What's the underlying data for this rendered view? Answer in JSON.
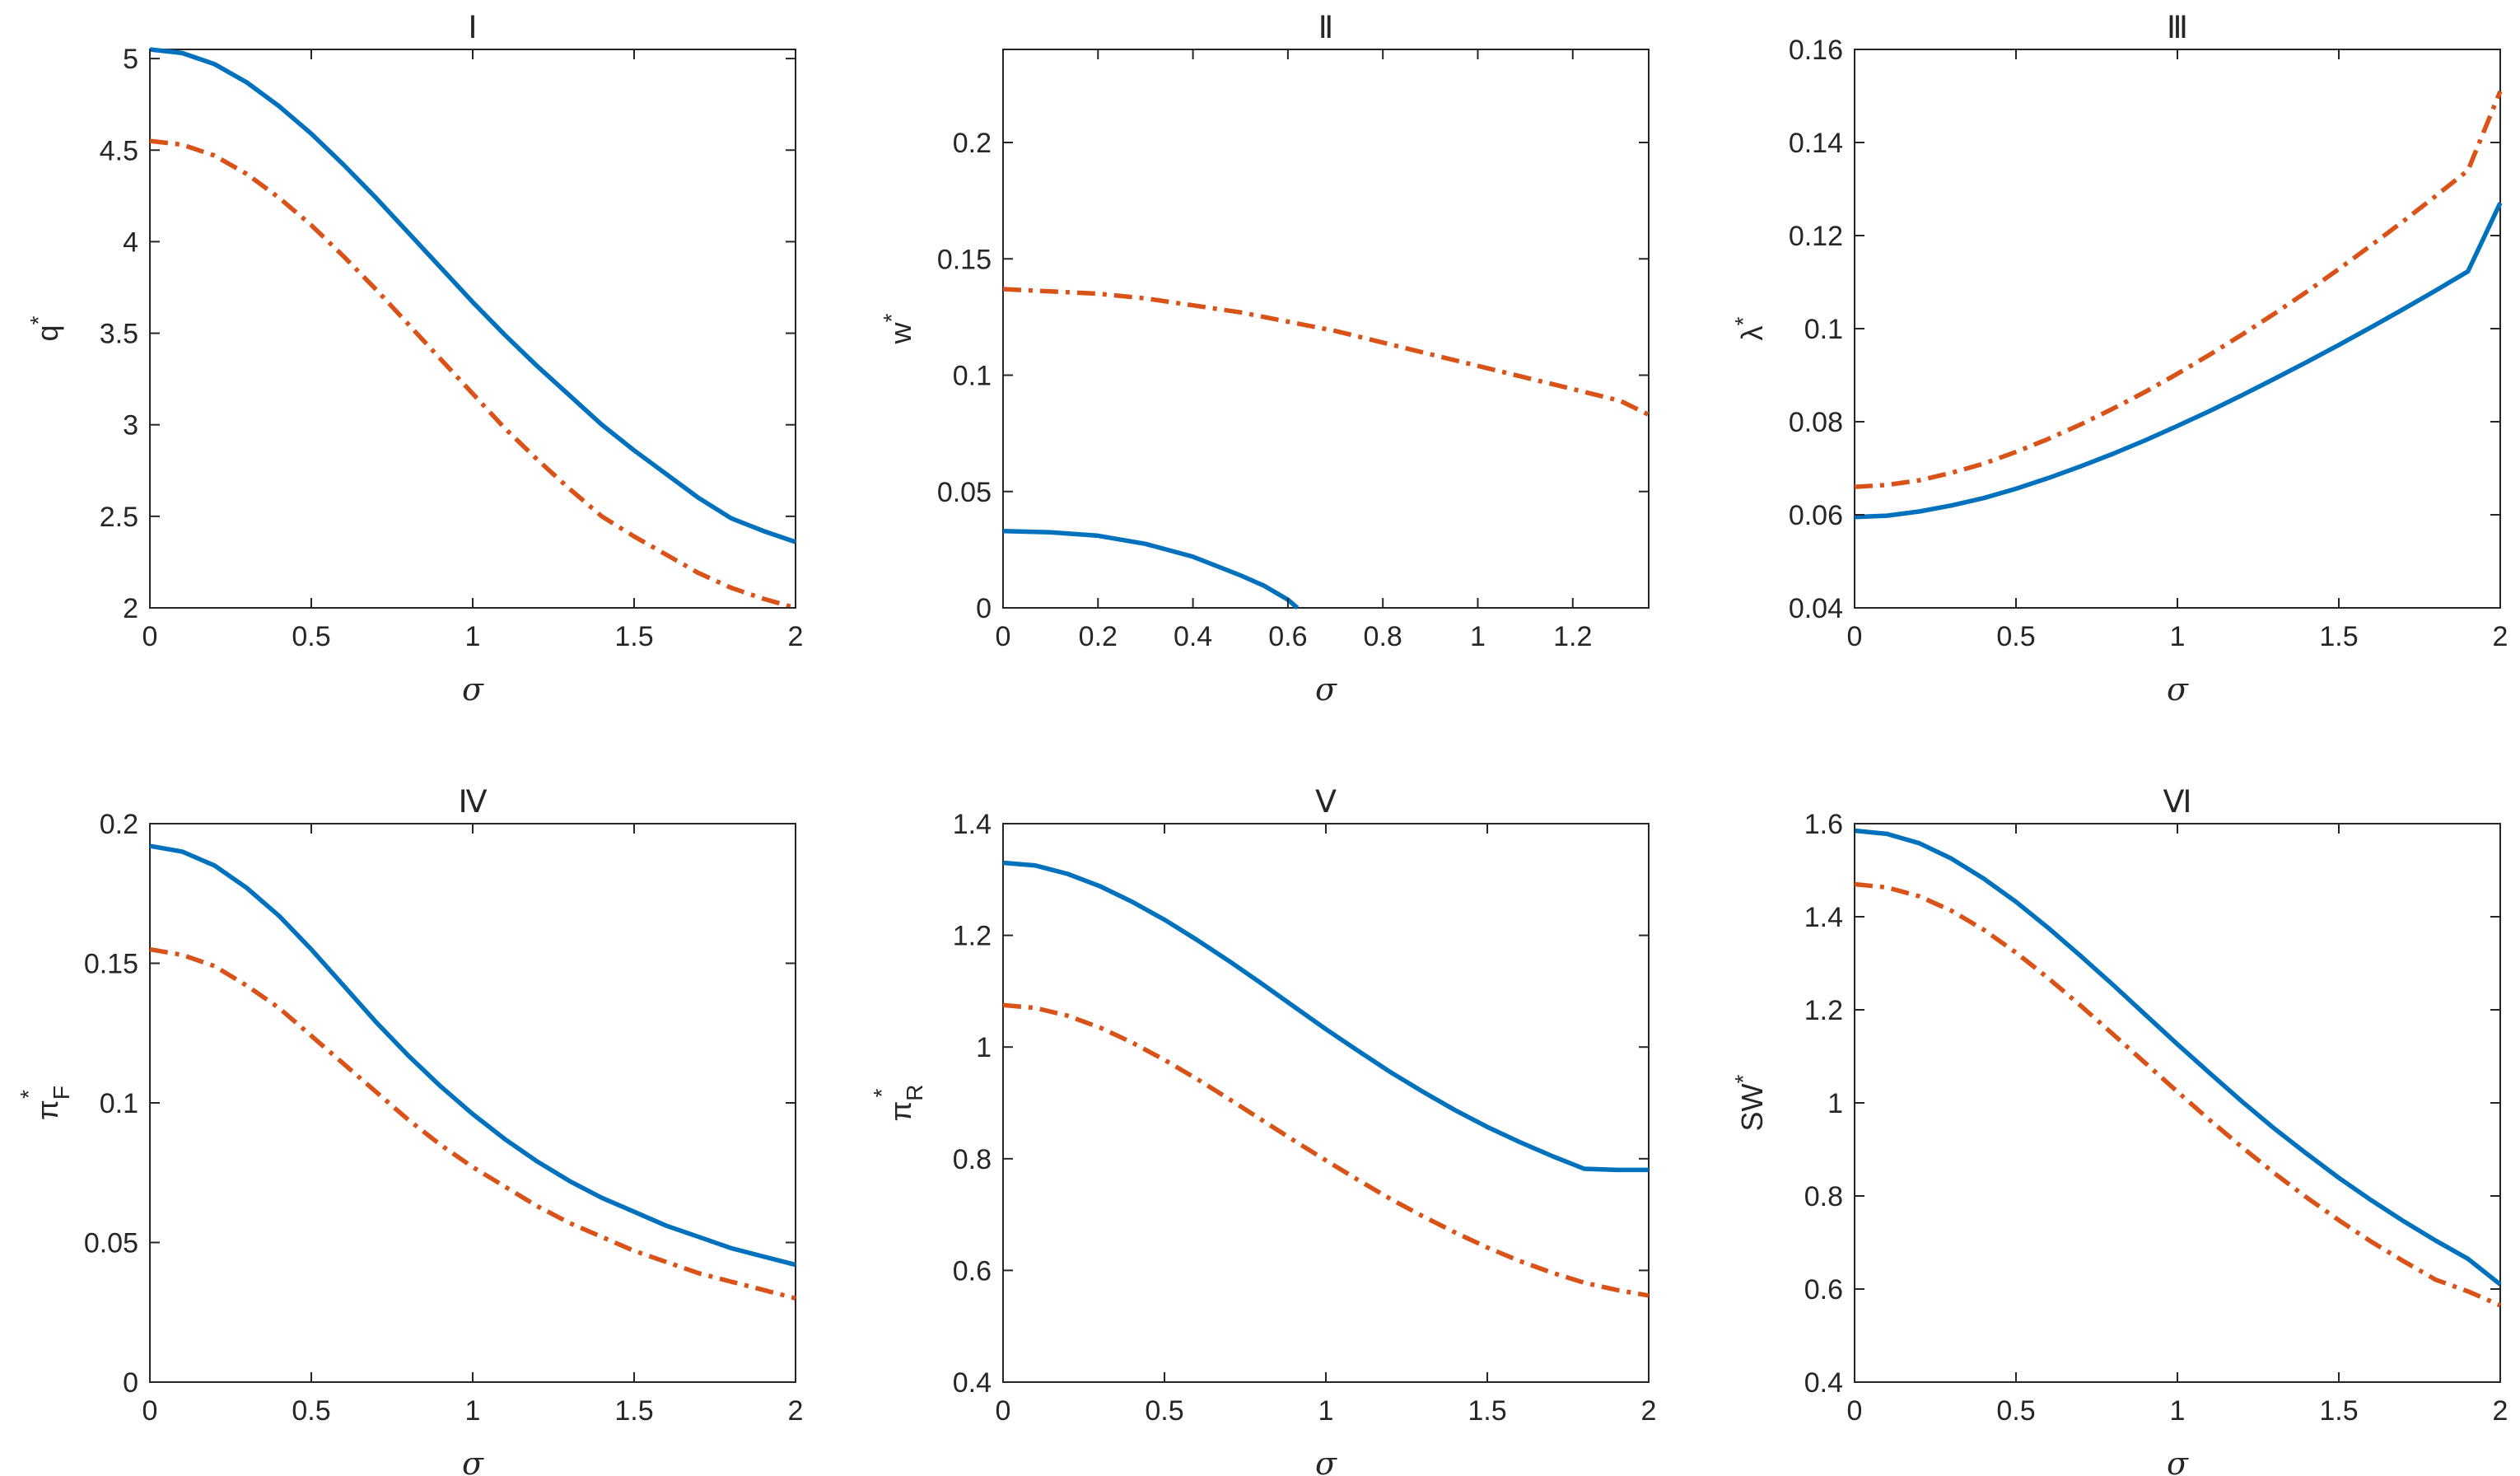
{
  "colors": {
    "series1": "#0072BD",
    "series2": "#D95319",
    "axis": "#262626"
  },
  "chart_data": [
    {
      "type": "line",
      "title": "Ⅰ",
      "xlabel": "σ",
      "ylabel": {
        "main": "q",
        "sup": "*",
        "sub": ""
      },
      "xlim": [
        0,
        2
      ],
      "ylim": [
        2,
        5.05
      ],
      "xticks": [
        0,
        0.5,
        1,
        1.5,
        2
      ],
      "xtick_labels": [
        "0",
        "0.5",
        "1",
        "1.5",
        "2"
      ],
      "yticks": [
        2,
        2.5,
        3,
        3.5,
        4,
        4.5,
        5
      ],
      "ytick_labels": [
        "2",
        "2.5",
        "3",
        "3.5",
        "4",
        "4.5",
        "5"
      ],
      "grid": false,
      "series": [
        {
          "style": "solid",
          "x": [
            0,
            0.1,
            0.2,
            0.3,
            0.4,
            0.5,
            0.6,
            0.7,
            0.8,
            0.9,
            1.0,
            1.1,
            1.2,
            1.3,
            1.4,
            1.5,
            1.6,
            1.7,
            1.8,
            1.9,
            2.0
          ],
          "y": [
            5.05,
            5.03,
            4.97,
            4.87,
            4.74,
            4.59,
            4.42,
            4.24,
            4.05,
            3.86,
            3.67,
            3.49,
            3.32,
            3.16,
            3.0,
            2.86,
            2.73,
            2.6,
            2.49,
            2.42,
            2.36
          ]
        },
        {
          "style": "dashdot",
          "x": [
            0,
            0.1,
            0.2,
            0.3,
            0.4,
            0.5,
            0.6,
            0.7,
            0.8,
            0.9,
            1.0,
            1.1,
            1.2,
            1.3,
            1.4,
            1.5,
            1.6,
            1.7,
            1.8,
            1.9,
            2.0
          ],
          "y": [
            4.55,
            4.53,
            4.47,
            4.37,
            4.24,
            4.09,
            3.92,
            3.74,
            3.55,
            3.36,
            3.17,
            2.98,
            2.81,
            2.65,
            2.5,
            2.39,
            2.29,
            2.19,
            2.11,
            2.05,
            2.0
          ]
        }
      ]
    },
    {
      "type": "line",
      "title": "Ⅱ",
      "xlabel": "σ",
      "ylabel": {
        "main": "w",
        "sup": "*",
        "sub": ""
      },
      "xlim": [
        0,
        1.36
      ],
      "ylim": [
        0,
        0.24
      ],
      "xticks": [
        0,
        0.2,
        0.4,
        0.6,
        0.8,
        1,
        1.2
      ],
      "xtick_labels": [
        "0",
        "0.2",
        "0.4",
        "0.6",
        "0.8",
        "1",
        "1.2"
      ],
      "yticks": [
        0,
        0.05,
        0.1,
        0.15,
        0.2
      ],
      "ytick_labels": [
        "0",
        "0.05",
        "0.1",
        "0.15",
        "0.2"
      ],
      "grid": false,
      "series": [
        {
          "style": "solid",
          "x": [
            0,
            0.1,
            0.2,
            0.3,
            0.4,
            0.5,
            0.55,
            0.6,
            0.62
          ],
          "y": [
            0.033,
            0.0325,
            0.031,
            0.0275,
            0.022,
            0.014,
            0.0095,
            0.0035,
            0.0
          ]
        },
        {
          "style": "dashdot",
          "x": [
            0,
            0.1,
            0.2,
            0.3,
            0.4,
            0.5,
            0.6,
            0.7,
            0.8,
            0.9,
            1.0,
            1.1,
            1.2,
            1.3,
            1.36
          ],
          "y": [
            0.137,
            0.136,
            0.135,
            0.133,
            0.13,
            0.127,
            0.123,
            0.119,
            0.114,
            0.109,
            0.104,
            0.099,
            0.094,
            0.089,
            0.083
          ]
        }
      ]
    },
    {
      "type": "line",
      "title": "Ⅲ",
      "xlabel": "σ",
      "ylabel": {
        "main": "λ",
        "sup": "*",
        "sub": ""
      },
      "xlim": [
        0,
        2
      ],
      "ylim": [
        0.04,
        0.16
      ],
      "xticks": [
        0,
        0.5,
        1,
        1.5,
        2
      ],
      "xtick_labels": [
        "0",
        "0.5",
        "1",
        "1.5",
        "2"
      ],
      "yticks": [
        0.04,
        0.06,
        0.08,
        0.1,
        0.12,
        0.14,
        0.16
      ],
      "ytick_labels": [
        "0.04",
        "0.06",
        "0.08",
        "0.1",
        "0.12",
        "0.14",
        "0.16"
      ],
      "grid": false,
      "series": [
        {
          "style": "solid",
          "x": [
            0,
            0.1,
            0.2,
            0.3,
            0.4,
            0.5,
            0.6,
            0.7,
            0.8,
            0.9,
            1.0,
            1.1,
            1.2,
            1.3,
            1.4,
            1.5,
            1.6,
            1.7,
            1.8,
            1.9,
            2.0
          ],
          "y": [
            0.0595,
            0.0598,
            0.0607,
            0.062,
            0.0636,
            0.0656,
            0.0679,
            0.0704,
            0.0731,
            0.076,
            0.0791,
            0.0823,
            0.0857,
            0.0892,
            0.0928,
            0.0965,
            0.1003,
            0.1042,
            0.1082,
            0.1123,
            0.127
          ]
        },
        {
          "style": "dashdot",
          "x": [
            0,
            0.1,
            0.2,
            0.3,
            0.4,
            0.5,
            0.6,
            0.7,
            0.8,
            0.9,
            1.0,
            1.1,
            1.2,
            1.3,
            1.4,
            1.5,
            1.6,
            1.7,
            1.8,
            1.9,
            2.0
          ],
          "y": [
            0.066,
            0.0664,
            0.0674,
            0.069,
            0.071,
            0.0735,
            0.0763,
            0.0794,
            0.0828,
            0.0864,
            0.0903,
            0.0944,
            0.0987,
            0.1032,
            0.1079,
            0.1128,
            0.1179,
            0.1231,
            0.1285,
            0.134,
            0.151
          ]
        }
      ]
    },
    {
      "type": "line",
      "title": "Ⅳ",
      "xlabel": "σ",
      "ylabel": {
        "main": "π",
        "sup": "*",
        "sub": "F"
      },
      "xlim": [
        0,
        2
      ],
      "ylim": [
        0,
        0.2
      ],
      "xticks": [
        0,
        0.5,
        1,
        1.5,
        2
      ],
      "xtick_labels": [
        "0",
        "0.5",
        "1",
        "1.5",
        "2"
      ],
      "yticks": [
        0,
        0.05,
        0.1,
        0.15,
        0.2
      ],
      "ytick_labels": [
        "0",
        "0.05",
        "0.1",
        "0.15",
        "0.2"
      ],
      "grid": false,
      "series": [
        {
          "style": "solid",
          "x": [
            0,
            0.1,
            0.2,
            0.3,
            0.4,
            0.5,
            0.6,
            0.7,
            0.8,
            0.9,
            1.0,
            1.1,
            1.2,
            1.3,
            1.4,
            1.5,
            1.6,
            1.7,
            1.8,
            1.9,
            2.0
          ],
          "y": [
            0.192,
            0.19,
            0.185,
            0.177,
            0.167,
            0.155,
            0.142,
            0.129,
            0.117,
            0.106,
            0.096,
            0.087,
            0.079,
            0.072,
            0.066,
            0.061,
            0.056,
            0.052,
            0.048,
            0.045,
            0.042
          ]
        },
        {
          "style": "dashdot",
          "x": [
            0,
            0.1,
            0.2,
            0.3,
            0.4,
            0.5,
            0.6,
            0.7,
            0.8,
            0.9,
            1.0,
            1.1,
            1.2,
            1.3,
            1.4,
            1.5,
            1.6,
            1.7,
            1.8,
            1.9,
            2.0
          ],
          "y": [
            0.155,
            0.153,
            0.149,
            0.142,
            0.134,
            0.124,
            0.114,
            0.104,
            0.094,
            0.085,
            0.077,
            0.07,
            0.063,
            0.057,
            0.052,
            0.047,
            0.043,
            0.039,
            0.036,
            0.033,
            0.03
          ]
        }
      ]
    },
    {
      "type": "line",
      "title": "Ⅴ",
      "xlabel": "σ",
      "ylabel": {
        "main": "π",
        "sup": "*",
        "sub": "R"
      },
      "xlim": [
        0,
        2
      ],
      "ylim": [
        0.4,
        1.4
      ],
      "xticks": [
        0,
        0.5,
        1,
        1.5,
        2
      ],
      "xtick_labels": [
        "0",
        "0.5",
        "1",
        "1.5",
        "2"
      ],
      "yticks": [
        0.4,
        0.6,
        0.8,
        1,
        1.2,
        1.4
      ],
      "ytick_labels": [
        "0.4",
        "0.6",
        "0.8",
        "1",
        "1.2",
        "1.4"
      ],
      "grid": false,
      "series": [
        {
          "style": "solid",
          "x": [
            0,
            0.1,
            0.2,
            0.3,
            0.4,
            0.5,
            0.6,
            0.7,
            0.8,
            0.9,
            1.0,
            1.1,
            1.2,
            1.3,
            1.4,
            1.5,
            1.6,
            1.7,
            1.8,
            1.9,
            2.0
          ],
          "y": [
            1.33,
            1.325,
            1.31,
            1.288,
            1.26,
            1.228,
            1.192,
            1.154,
            1.114,
            1.073,
            1.032,
            0.993,
            0.955,
            0.92,
            0.887,
            0.857,
            0.83,
            0.805,
            0.782,
            0.78,
            0.78
          ]
        },
        {
          "style": "dashdot",
          "x": [
            0,
            0.1,
            0.2,
            0.3,
            0.4,
            0.5,
            0.6,
            0.7,
            0.8,
            0.9,
            1.0,
            1.1,
            1.2,
            1.3,
            1.4,
            1.5,
            1.6,
            1.7,
            1.8,
            1.9,
            2.0
          ],
          "y": [
            1.075,
            1.07,
            1.056,
            1.035,
            1.008,
            0.977,
            0.943,
            0.907,
            0.87,
            0.833,
            0.797,
            0.762,
            0.728,
            0.697,
            0.668,
            0.641,
            0.617,
            0.596,
            0.578,
            0.565,
            0.555
          ]
        }
      ]
    },
    {
      "type": "line",
      "title": "Ⅵ",
      "xlabel": "σ",
      "ylabel": {
        "main": "SW",
        "sup": "*",
        "sub": ""
      },
      "xlim": [
        0,
        2
      ],
      "ylim": [
        0.4,
        1.6
      ],
      "xticks": [
        0,
        0.5,
        1,
        1.5,
        2
      ],
      "xtick_labels": [
        "0",
        "0.5",
        "1",
        "1.5",
        "2"
      ],
      "yticks": [
        0.4,
        0.6,
        0.8,
        1,
        1.2,
        1.4,
        1.6
      ],
      "ytick_labels": [
        "0.4",
        "0.6",
        "0.8",
        "1",
        "1.2",
        "1.4",
        "1.6"
      ],
      "grid": false,
      "series": [
        {
          "style": "solid",
          "x": [
            0,
            0.1,
            0.2,
            0.3,
            0.4,
            0.5,
            0.6,
            0.7,
            0.8,
            0.9,
            1.0,
            1.1,
            1.2,
            1.3,
            1.4,
            1.5,
            1.6,
            1.7,
            1.8,
            1.9,
            2.0
          ],
          "y": [
            1.585,
            1.578,
            1.558,
            1.525,
            1.482,
            1.432,
            1.376,
            1.316,
            1.254,
            1.19,
            1.126,
            1.064,
            1.003,
            0.945,
            0.891,
            0.839,
            0.791,
            0.746,
            0.704,
            0.665,
            0.61
          ]
        },
        {
          "style": "dashdot",
          "x": [
            0,
            0.1,
            0.2,
            0.3,
            0.4,
            0.5,
            0.6,
            0.7,
            0.8,
            0.9,
            1.0,
            1.1,
            1.2,
            1.3,
            1.4,
            1.5,
            1.6,
            1.7,
            1.8,
            1.9,
            2.0
          ],
          "y": [
            1.47,
            1.463,
            1.444,
            1.413,
            1.372,
            1.323,
            1.268,
            1.209,
            1.148,
            1.086,
            1.024,
            0.963,
            0.905,
            0.849,
            0.797,
            0.748,
            0.702,
            0.66,
            0.62,
            0.595,
            0.565
          ]
        }
      ]
    }
  ]
}
